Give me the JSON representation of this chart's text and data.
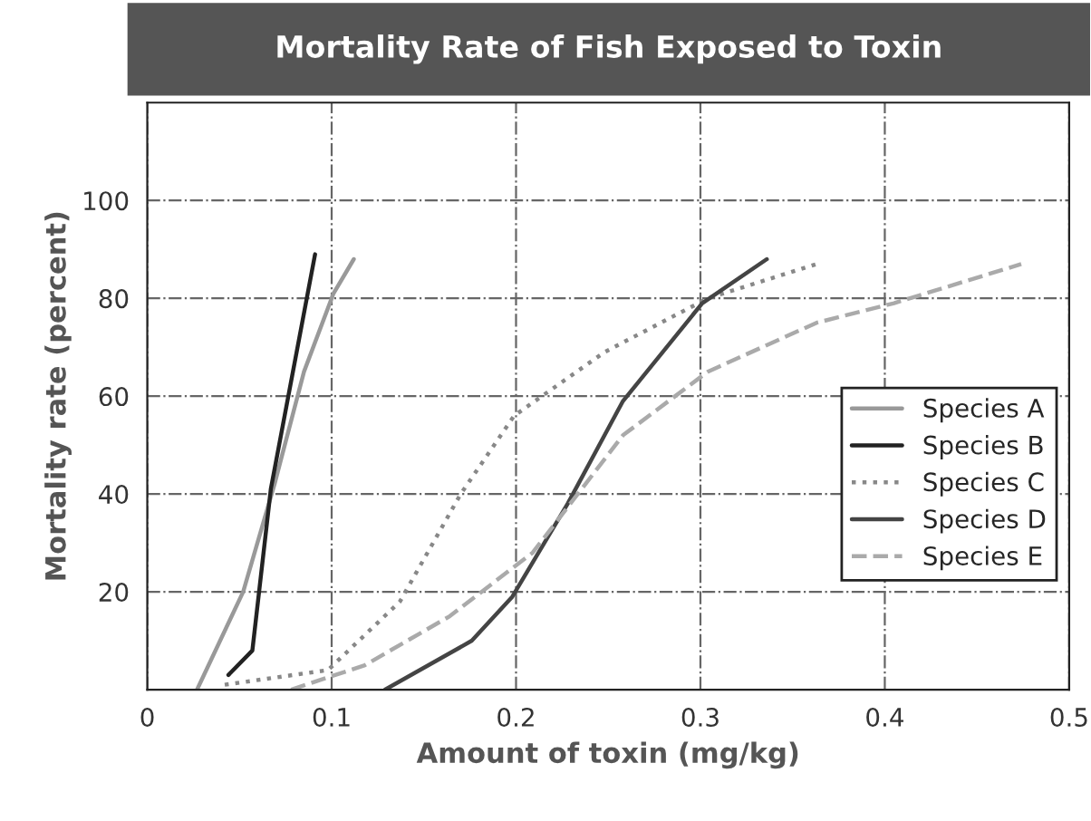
{
  "chart_data": {
    "type": "line",
    "title": "Mortality Rate of Fish Exposed to Toxin",
    "xlabel": "Amount of toxin (mg/kg)",
    "ylabel": "Mortality rate (percent)",
    "xlim": [
      0,
      0.5
    ],
    "ylim": [
      0,
      120
    ],
    "xticks": [
      0,
      0.1,
      0.2,
      0.3,
      0.4,
      0.5
    ],
    "yticks": [
      20,
      40,
      60,
      80,
      100
    ],
    "grid": true,
    "legend": "right",
    "marker": "none",
    "series": [
      {
        "name": "Species A",
        "color": "#999999",
        "line_style": "solid",
        "x": [
          0.027,
          0.052,
          0.069,
          0.085,
          0.101,
          0.112
        ],
        "values": [
          0,
          20,
          42,
          65,
          81,
          88
        ]
      },
      {
        "name": "Species B",
        "color": "#222222",
        "line_style": "solid",
        "x": [
          0.044,
          0.057,
          0.067,
          0.078,
          0.091
        ],
        "values": [
          3,
          8,
          41,
          63,
          89
        ]
      },
      {
        "name": "Species C",
        "color": "#888888",
        "line_style": "dotted",
        "x": [
          0.042,
          0.098,
          0.137,
          0.17,
          0.199,
          0.248,
          0.304,
          0.363
        ],
        "values": [
          1,
          4,
          18,
          40,
          56,
          69,
          80,
          87
        ]
      },
      {
        "name": "Species D",
        "color": "#444444",
        "line_style": "solid",
        "x": [
          0.129,
          0.176,
          0.198,
          0.228,
          0.258,
          0.301,
          0.336
        ],
        "values": [
          0,
          10,
          19,
          38,
          59,
          79,
          88
        ]
      },
      {
        "name": "Species E",
        "color": "#aaaaaa",
        "line_style": "dashed",
        "x": [
          0.078,
          0.118,
          0.164,
          0.209,
          0.258,
          0.304,
          0.363,
          0.405,
          0.474
        ],
        "values": [
          0,
          5,
          15,
          28,
          52,
          65,
          75,
          79,
          87
        ]
      }
    ]
  }
}
